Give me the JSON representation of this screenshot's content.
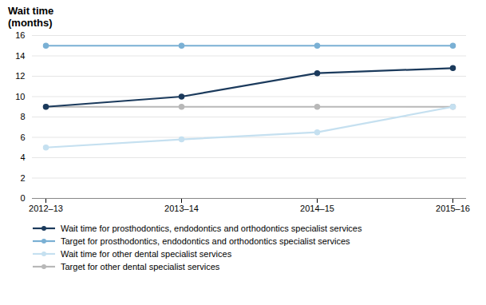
{
  "chart_data": {
    "type": "line",
    "ylabel": "Wait time\n(months)",
    "categories": [
      "2012–13",
      "2013–14",
      "2014–15",
      "2015–16"
    ],
    "series": [
      {
        "name": "Wait time for prosthodontics, endodontics and orthodontics specialist services",
        "color": "#1b3a5c",
        "marker": "circle",
        "values": [
          9.0,
          10.0,
          12.3,
          12.8
        ]
      },
      {
        "name": "Target for prosthodontics, endodontics and orthodontics specialist services",
        "color": "#7ab0d4",
        "marker": "circle",
        "values": [
          15.0,
          15.0,
          15.0,
          15.0
        ]
      },
      {
        "name": "Wait time for other dental specialist services",
        "color": "#c5e0f0",
        "marker": "circle",
        "values": [
          5.0,
          5.8,
          6.5,
          9.0
        ]
      },
      {
        "name": "Target for other dental specialist services",
        "color": "#b8b8b8",
        "marker": "circle",
        "values": [
          9.0,
          9.0,
          9.0,
          9.0
        ]
      }
    ],
    "ylim": [
      0,
      16
    ],
    "yticks": [
      0,
      2,
      4,
      6,
      8,
      10,
      12,
      14,
      16
    ],
    "grid": true,
    "legend": "bottom"
  }
}
